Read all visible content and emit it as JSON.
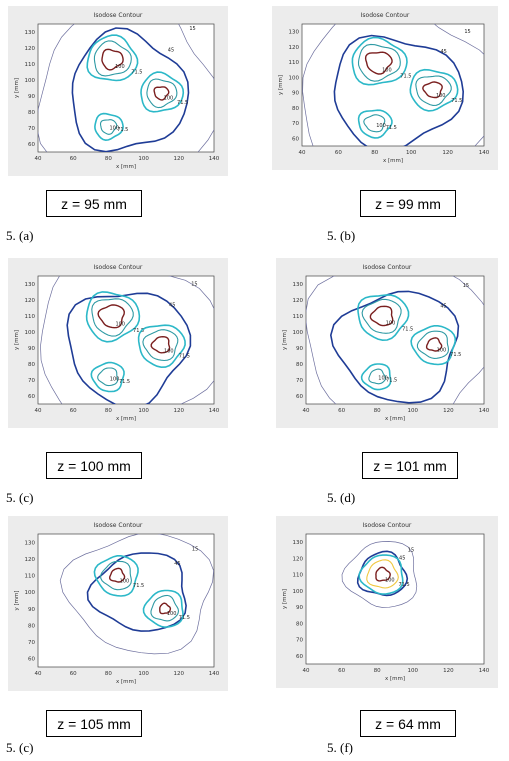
{
  "figure": {
    "panels": [
      {
        "plot_title": "Isodose Contour",
        "z_label": "z = 95 mm",
        "caption": "5. (a)"
      },
      {
        "plot_title": "Isodose Contour",
        "z_label": "z = 99 mm",
        "caption": "5. (b)"
      },
      {
        "plot_title": "Isodose Contour",
        "z_label": "z = 100 mm",
        "caption": "5. (c)"
      },
      {
        "plot_title": "Isodose Contour",
        "z_label": "z = 101 mm",
        "caption": "5. (d)"
      },
      {
        "plot_title": "Isodose Contour",
        "z_label": "z = 105 mm",
        "caption": "5. (c)"
      },
      {
        "plot_title": "Isodose Contour",
        "z_label": "z = 64 mm",
        "caption": "5. (f)"
      }
    ]
  },
  "chart_data": [
    {
      "type": "contour",
      "title": "Isodose Contour",
      "xlabel": "x [mm]",
      "ylabel": "y [mm]",
      "xlim": [
        40,
        140
      ],
      "ylim": [
        55,
        135
      ],
      "xticks": [
        40,
        60,
        80,
        100,
        120,
        140
      ],
      "yticks": [
        60,
        70,
        80,
        90,
        100,
        110,
        120,
        130
      ],
      "levels": [
        "15",
        "45",
        "71.5",
        "100"
      ],
      "colors": {
        "15": "#6d6f9e",
        "45": "#1f3c96",
        "71.5": "#2cb8c8",
        "100": "#2f9aa4",
        "high": "#7a1f1f"
      },
      "centers": [
        {
          "x": 82,
          "y": 113,
          "r": 9
        },
        {
          "x": 110,
          "y": 92,
          "r": 7
        },
        {
          "x": 80,
          "y": 71,
          "r": 3
        }
      ]
    },
    {
      "type": "contour",
      "title": "Isodose Contour",
      "xlabel": "x [mm]",
      "ylabel": "y [mm]",
      "xlim": [
        40,
        140
      ],
      "ylim": [
        55,
        135
      ],
      "xticks": [
        40,
        60,
        80,
        100,
        120,
        140
      ],
      "yticks": [
        60,
        70,
        80,
        90,
        100,
        110,
        120,
        130
      ],
      "levels": [
        "15",
        "45",
        "71.5",
        "100"
      ],
      "colors": {
        "15": "#6d6f9e",
        "45": "#1f3c96",
        "71.5": "#2cb8c8",
        "100": "#2f9aa4",
        "high": "#7a1f1f"
      },
      "centers": [
        {
          "x": 82,
          "y": 110,
          "r": 10
        },
        {
          "x": 112,
          "y": 92,
          "r": 8
        },
        {
          "x": 80,
          "y": 70,
          "r": 4
        }
      ]
    },
    {
      "type": "contour",
      "title": "Isodose Contour",
      "xlabel": "x [mm]",
      "ylabel": "y [mm]",
      "xlim": [
        40,
        140
      ],
      "ylim": [
        55,
        135
      ],
      "xticks": [
        40,
        60,
        80,
        100,
        120,
        140
      ],
      "yticks": [
        60,
        70,
        80,
        90,
        100,
        110,
        120,
        130
      ],
      "levels": [
        "15",
        "45",
        "71.5",
        "100"
      ],
      "colors": {
        "15": "#6d6f9e",
        "45": "#1f3c96",
        "71.5": "#2cb8c8",
        "100": "#2f9aa4",
        "high": "#7a1f1f"
      },
      "centers": [
        {
          "x": 82,
          "y": 110,
          "r": 10
        },
        {
          "x": 110,
          "y": 92,
          "r": 8
        },
        {
          "x": 80,
          "y": 72,
          "r": 4
        }
      ]
    },
    {
      "type": "contour",
      "title": "Isodose Contour",
      "xlabel": "x [mm]",
      "ylabel": "y [mm]",
      "xlim": [
        40,
        140
      ],
      "ylim": [
        55,
        135
      ],
      "xticks": [
        40,
        60,
        80,
        100,
        120,
        140
      ],
      "yticks": [
        60,
        70,
        80,
        90,
        100,
        110,
        120,
        130
      ],
      "levels": [
        "15",
        "45",
        "71.5",
        "100"
      ],
      "colors": {
        "15": "#6d6f9e",
        "45": "#1f3c96",
        "71.5": "#2cb8c8",
        "100": "#2f9aa4",
        "high": "#7a1f1f"
      },
      "centers": [
        {
          "x": 83,
          "y": 110,
          "r": 9
        },
        {
          "x": 112,
          "y": 92,
          "r": 7
        },
        {
          "x": 80,
          "y": 72,
          "r": 3
        }
      ]
    },
    {
      "type": "contour",
      "title": "Isodose Contour",
      "xlabel": "x [mm]",
      "ylabel": "y [mm]",
      "xlim": [
        40,
        140
      ],
      "ylim": [
        55,
        135
      ],
      "xticks": [
        40,
        60,
        80,
        100,
        120,
        140
      ],
      "yticks": [
        60,
        70,
        80,
        90,
        100,
        110,
        120,
        130
      ],
      "levels": [
        "15",
        "45",
        "71.5",
        "100"
      ],
      "colors": {
        "15": "#6d6f9e",
        "45": "#1f3c96",
        "71.5": "#2cb8c8",
        "100": "#2f9aa4",
        "high": "#7a1f1f"
      },
      "centers": [
        {
          "x": 85,
          "y": 110,
          "r": 7
        },
        {
          "x": 112,
          "y": 90,
          "r": 6
        }
      ]
    },
    {
      "type": "contour",
      "title": "Isodose Contour",
      "xlabel": "x [mm]",
      "ylabel": "y [mm]",
      "xlim": [
        40,
        140
      ],
      "ylim": [
        55,
        135
      ],
      "xticks": [
        40,
        60,
        80,
        100,
        120,
        140
      ],
      "yticks": [
        60,
        70,
        80,
        90,
        100,
        110,
        120,
        130
      ],
      "levels": [
        "15",
        "45",
        "71.5",
        "100"
      ],
      "colors": {
        "15": "#6d6f9e",
        "45": "#1f3c96",
        "71.5": "#2cb8c8",
        "100": "#f0c840",
        "high": "#7a1f1f"
      },
      "centers": [
        {
          "x": 83,
          "y": 110,
          "r": 7
        }
      ]
    }
  ]
}
